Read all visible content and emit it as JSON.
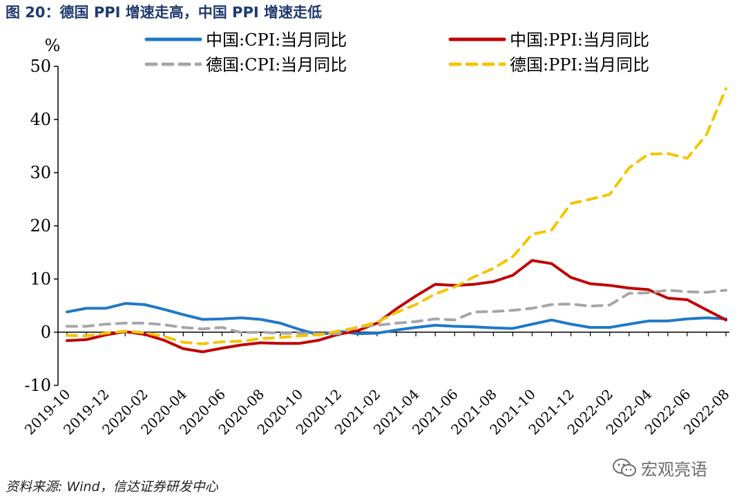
{
  "header": {
    "title": "图 20：德国 PPI 增速走高，中国 PPI 增速走低"
  },
  "footer": {
    "source": "资料来源: Wind，信达证券研发中心"
  },
  "watermark": {
    "text": "宏观亮语",
    "icon": "wechat-icon"
  },
  "chart_data": {
    "type": "line",
    "title": "",
    "ylabel": "%",
    "ylim": [
      -10,
      50
    ],
    "yticks": [
      -10,
      0,
      10,
      20,
      30,
      40,
      50
    ],
    "x_tick_labels": [
      "2019-10",
      "2019-12",
      "2020-02",
      "2020-04",
      "2020-06",
      "2020-08",
      "2020-10",
      "2020-12",
      "2021-02",
      "2021-04",
      "2021-06",
      "2021-08",
      "2021-10",
      "2021-12",
      "2022-02",
      "2022-04",
      "2022-06",
      "2022-08"
    ],
    "x": [
      "2019-10",
      "2019-11",
      "2019-12",
      "2020-01",
      "2020-02",
      "2020-03",
      "2020-04",
      "2020-05",
      "2020-06",
      "2020-07",
      "2020-08",
      "2020-09",
      "2020-10",
      "2020-11",
      "2020-12",
      "2021-01",
      "2021-02",
      "2021-03",
      "2021-04",
      "2021-05",
      "2021-06",
      "2021-07",
      "2021-08",
      "2021-09",
      "2021-10",
      "2021-11",
      "2021-12",
      "2022-01",
      "2022-02",
      "2022-03",
      "2022-04",
      "2022-05",
      "2022-06",
      "2022-07",
      "2022-08"
    ],
    "legend_placement": "top",
    "series": [
      {
        "name": "中国:CPI:当月同比",
        "color": "#1f78c8",
        "dash": "solid",
        "values": [
          3.8,
          4.5,
          4.5,
          5.4,
          5.2,
          4.3,
          3.3,
          2.4,
          2.5,
          2.7,
          2.4,
          1.7,
          0.5,
          -0.5,
          0.2,
          -0.3,
          -0.2,
          0.4,
          0.9,
          1.3,
          1.1,
          1.0,
          0.8,
          0.7,
          1.5,
          2.3,
          1.5,
          0.9,
          0.9,
          1.5,
          2.1,
          2.1,
          2.5,
          2.7,
          2.5
        ]
      },
      {
        "name": "中国:PPI:当月同比",
        "color": "#c00000",
        "dash": "solid",
        "values": [
          -1.6,
          -1.4,
          -0.5,
          0.1,
          -0.4,
          -1.5,
          -3.1,
          -3.7,
          -3.0,
          -2.4,
          -2.0,
          -2.1,
          -2.1,
          -1.5,
          -0.4,
          0.3,
          1.7,
          4.4,
          6.8,
          9.0,
          8.8,
          9.0,
          9.5,
          10.7,
          13.5,
          12.9,
          10.3,
          9.1,
          8.8,
          8.3,
          8.0,
          6.4,
          6.1,
          4.2,
          2.3
        ]
      },
      {
        "name": "德国:CPI:当月同比",
        "color": "#a6a6a6",
        "dash": "dash",
        "values": [
          1.1,
          1.1,
          1.5,
          1.7,
          1.7,
          1.4,
          0.9,
          0.6,
          0.9,
          -0.1,
          0.0,
          -0.2,
          -0.2,
          -0.3,
          -0.3,
          1.0,
          1.3,
          1.7,
          2.0,
          2.5,
          2.3,
          3.8,
          3.9,
          4.1,
          4.5,
          5.2,
          5.3,
          4.9,
          5.1,
          7.3,
          7.4,
          7.9,
          7.6,
          7.5,
          7.9
        ]
      },
      {
        "name": "德国:PPI:当月同比",
        "color": "#f5c400",
        "dash": "dash",
        "values": [
          -0.6,
          -0.7,
          -0.2,
          0.2,
          -0.1,
          -0.8,
          -1.9,
          -2.2,
          -1.8,
          -1.7,
          -1.2,
          -1.0,
          -0.7,
          -0.5,
          0.2,
          0.9,
          1.9,
          3.7,
          5.2,
          7.2,
          8.5,
          10.4,
          12.0,
          14.2,
          18.4,
          19.2,
          24.2,
          25.0,
          25.9,
          30.9,
          33.5,
          33.6,
          32.7,
          37.2,
          45.8
        ]
      }
    ]
  }
}
